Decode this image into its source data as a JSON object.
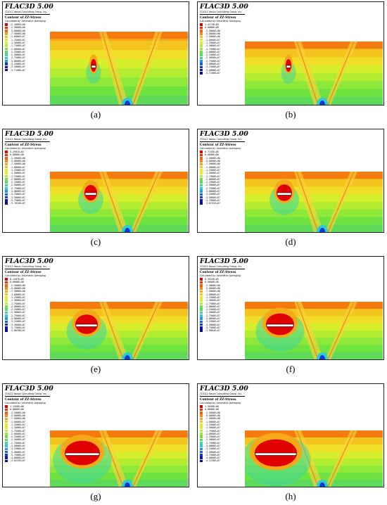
{
  "header": {
    "title": "FLAC3D 5.00",
    "copyright": "©2012 Itasca Consulting Group, Inc.",
    "contour_title": "Contour of ZZ-Stress",
    "contour_note": "Calculated by: Volumetric Averaging"
  },
  "colors": {
    "legend": [
      "#e00000",
      "#f4300a",
      "#f7600c",
      "#f88a12",
      "#f6a818",
      "#f3c71d",
      "#f0e427",
      "#d9ef2b",
      "#b7ee31",
      "#93ea38",
      "#6fe33e",
      "#58dc62",
      "#3fd59f",
      "#2ccbd8",
      "#2098ea",
      "#1762e0",
      "#1038d0",
      "#0a14b6",
      "#0808a0"
    ]
  },
  "panels": [
    {
      "label": "(a)",
      "legend": [
        "-2.1605E+06",
        "-2.5000E+06",
        "-5.0000E+06",
        "-7.5000E+06",
        "-1.0000E+07",
        "-1.2500E+07",
        "-1.5000E+07",
        "-1.7500E+07",
        "-2.0000E+07",
        "-2.2500E+07",
        "-2.5000E+07",
        "-2.7500E+07",
        "-3.0000E+07",
        "-3.2500E+07",
        "-3.5000E+07",
        "-3.7190E+07"
      ]
    },
    {
      "label": "(b)",
      "legend": [
        "1.4174E+05",
        "0.0000E+00",
        "-2.5000E+06",
        "-5.0000E+06",
        "-7.5000E+06",
        "-1.0000E+07",
        "-1.2500E+07",
        "-1.5000E+07",
        "-1.7500E+07",
        "-2.0000E+07",
        "-2.2500E+07",
        "-2.5000E+07",
        "-2.7500E+07",
        "-3.0000E+07",
        "-3.2500E+07",
        "-3.5000E+07",
        "-3.7190E+07"
      ]
    },
    {
      "label": "(c)",
      "legend": [
        "3.2991E+05",
        "0.0000E+00",
        "-2.5000E+06",
        "-5.0000E+06",
        "-7.5000E+06",
        "-1.0000E+07",
        "-1.2500E+07",
        "-1.5000E+07",
        "-1.7500E+07",
        "-2.0000E+07",
        "-2.2500E+07",
        "-2.5000E+07",
        "-2.7500E+07",
        "-3.0000E+07",
        "-3.2500E+07",
        "-3.5000E+07",
        "-3.7500E+07",
        "-3.7824E+07"
      ]
    },
    {
      "label": "(d)",
      "legend": [
        "6.7145E+05",
        "0.0000E+00",
        "-2.5000E+06",
        "-5.0000E+06",
        "-7.5000E+06",
        "-1.0000E+07",
        "-1.2500E+07",
        "-1.5000E+07",
        "-1.7500E+07",
        "-2.0000E+07",
        "-2.2500E+07",
        "-2.5000E+07",
        "-2.7500E+07",
        "-3.0000E+07",
        "-3.2500E+07",
        "-3.5000E+07",
        "-3.7500E+07",
        "-3.8131E+07"
      ]
    },
    {
      "label": "(e)",
      "legend": [
        "8.1287E+05",
        "0.0000E+00",
        "-2.5000E+06",
        "-5.0000E+06",
        "-7.5000E+06",
        "-1.0000E+07",
        "-1.2500E+07",
        "-1.5000E+07",
        "-1.7500E+07",
        "-2.0000E+07",
        "-2.2500E+07",
        "-2.5000E+07",
        "-2.7500E+07",
        "-3.0000E+07",
        "-3.2500E+07",
        "-3.5000E+07",
        "-3.7500E+07",
        "-3.8639E+07"
      ]
    },
    {
      "label": "(f)",
      "legend": [
        "8.3934E+05",
        "0.0000E+00",
        "-2.5000E+06",
        "-5.0000E+06",
        "-7.5000E+06",
        "-1.0000E+07",
        "-1.2500E+07",
        "-1.5000E+07",
        "-1.7500E+07",
        "-2.0000E+07",
        "-2.2500E+07",
        "-2.5000E+07",
        "-2.7500E+07",
        "-3.0000E+07",
        "-3.2500E+07",
        "-3.5000E+07",
        "-3.7500E+07",
        "-3.9064E+07"
      ]
    },
    {
      "label": "(g)",
      "legend": [
        "1.1358E+06",
        "0.0000E+00",
        "-2.5000E+06",
        "-5.0000E+06",
        "-7.5000E+06",
        "-1.0000E+07",
        "-1.2500E+07",
        "-1.5000E+07",
        "-1.7500E+07",
        "-2.0000E+07",
        "-2.2500E+07",
        "-2.5000E+07",
        "-2.7500E+07",
        "-3.0000E+07",
        "-3.2500E+07",
        "-3.5000E+07",
        "-3.7500E+07",
        "-4.0000E+07",
        "-4.0235E+07"
      ]
    },
    {
      "label": "(h)",
      "legend": [
        "1.5638E+06",
        "0.0000E+00",
        "-2.5000E+06",
        "-5.0000E+06",
        "-7.5000E+06",
        "-1.0000E+07",
        "-1.2500E+07",
        "-1.5000E+07",
        "-1.7500E+07",
        "-2.0000E+07",
        "-2.2500E+07",
        "-2.5000E+07",
        "-2.7500E+07",
        "-3.0000E+07",
        "-3.2500E+07",
        "-3.5000E+07",
        "-3.7500E+07",
        "-4.0000E+07",
        "-4.1238E+07"
      ]
    }
  ]
}
